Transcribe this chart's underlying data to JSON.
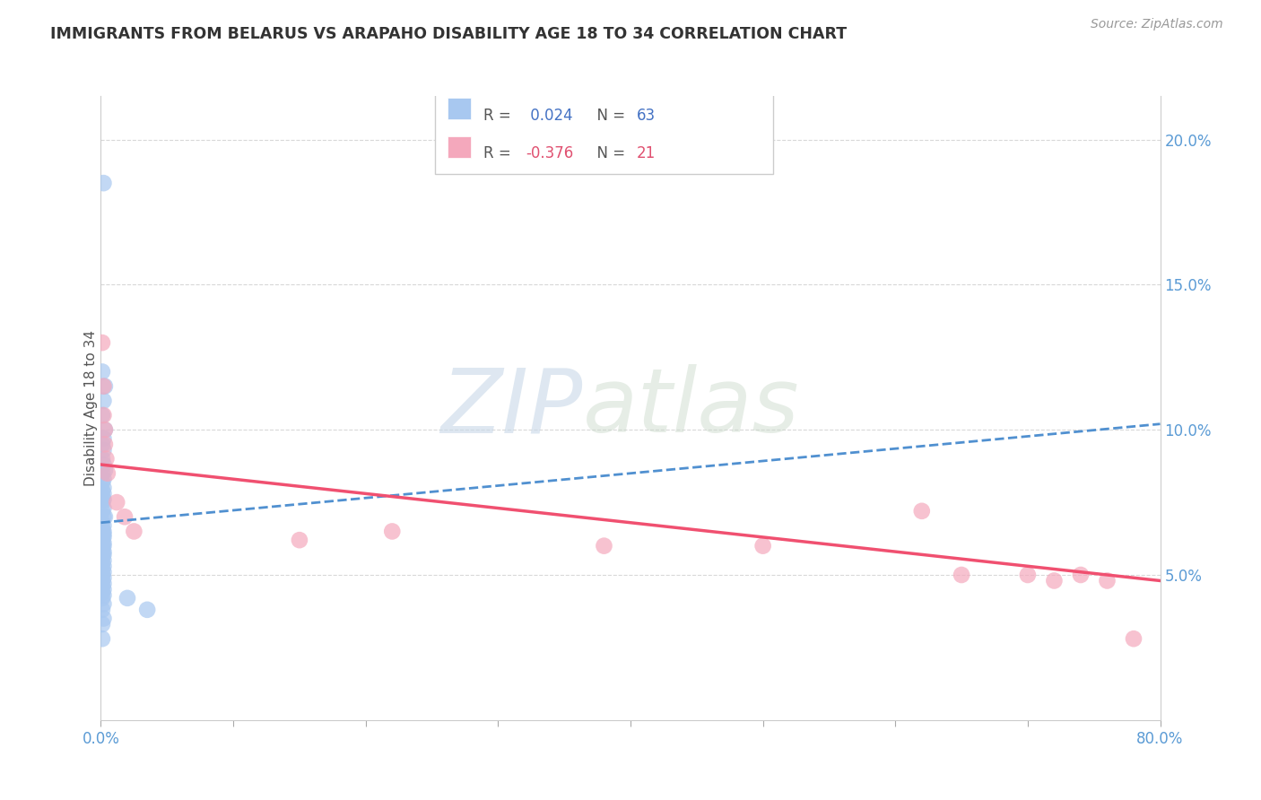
{
  "title": "IMMIGRANTS FROM BELARUS VS ARAPAHO DISABILITY AGE 18 TO 34 CORRELATION CHART",
  "source": "Source: ZipAtlas.com",
  "ylabel": "Disability Age 18 to 34",
  "xlim": [
    0.0,
    0.8
  ],
  "ylim": [
    0.0,
    0.215
  ],
  "blue_color": "#a8c8f0",
  "pink_color": "#f4a8bc",
  "blue_line_color": "#5090d0",
  "pink_line_color": "#f05070",
  "legend_blue_r": "R =  0.024",
  "legend_blue_n": "N = 63",
  "legend_pink_r": "R = -0.376",
  "legend_pink_n": "N = 21",
  "blue_R": 0.024,
  "pink_R": -0.376,
  "blue_line_x0": 0.0,
  "blue_line_y0": 0.068,
  "blue_line_x1": 0.8,
  "blue_line_y1": 0.102,
  "pink_line_x0": 0.0,
  "pink_line_y0": 0.088,
  "pink_line_x1": 0.8,
  "pink_line_y1": 0.048,
  "blue_x": [
    0.002,
    0.001,
    0.003,
    0.002,
    0.001,
    0.003,
    0.002,
    0.001,
    0.002,
    0.001,
    0.002,
    0.003,
    0.001,
    0.002,
    0.001,
    0.002,
    0.001,
    0.002,
    0.001,
    0.002,
    0.001,
    0.002,
    0.001,
    0.003,
    0.002,
    0.001,
    0.002,
    0.001,
    0.002,
    0.001,
    0.002,
    0.001,
    0.002,
    0.001,
    0.002,
    0.001,
    0.002,
    0.001,
    0.002,
    0.001,
    0.002,
    0.001,
    0.002,
    0.001,
    0.002,
    0.001,
    0.002,
    0.001,
    0.002,
    0.001,
    0.002,
    0.001,
    0.002,
    0.001,
    0.002,
    0.001,
    0.002,
    0.001,
    0.002,
    0.001,
    0.02,
    0.035,
    0.001
  ],
  "blue_y": [
    0.185,
    0.12,
    0.115,
    0.11,
    0.105,
    0.1,
    0.097,
    0.095,
    0.093,
    0.09,
    0.088,
    0.086,
    0.085,
    0.083,
    0.082,
    0.08,
    0.079,
    0.078,
    0.077,
    0.076,
    0.075,
    0.073,
    0.072,
    0.07,
    0.07,
    0.068,
    0.067,
    0.066,
    0.065,
    0.065,
    0.064,
    0.063,
    0.063,
    0.062,
    0.061,
    0.06,
    0.06,
    0.059,
    0.058,
    0.057,
    0.057,
    0.056,
    0.055,
    0.054,
    0.053,
    0.052,
    0.051,
    0.05,
    0.049,
    0.048,
    0.047,
    0.046,
    0.045,
    0.044,
    0.043,
    0.042,
    0.04,
    0.038,
    0.035,
    0.033,
    0.042,
    0.038,
    0.028
  ],
  "pink_x": [
    0.001,
    0.002,
    0.002,
    0.003,
    0.003,
    0.004,
    0.005,
    0.012,
    0.018,
    0.025,
    0.15,
    0.22,
    0.38,
    0.5,
    0.62,
    0.65,
    0.7,
    0.72,
    0.74,
    0.76,
    0.78
  ],
  "pink_y": [
    0.13,
    0.115,
    0.105,
    0.1,
    0.095,
    0.09,
    0.085,
    0.075,
    0.07,
    0.065,
    0.062,
    0.065,
    0.06,
    0.06,
    0.072,
    0.05,
    0.05,
    0.048,
    0.05,
    0.048,
    0.028
  ]
}
